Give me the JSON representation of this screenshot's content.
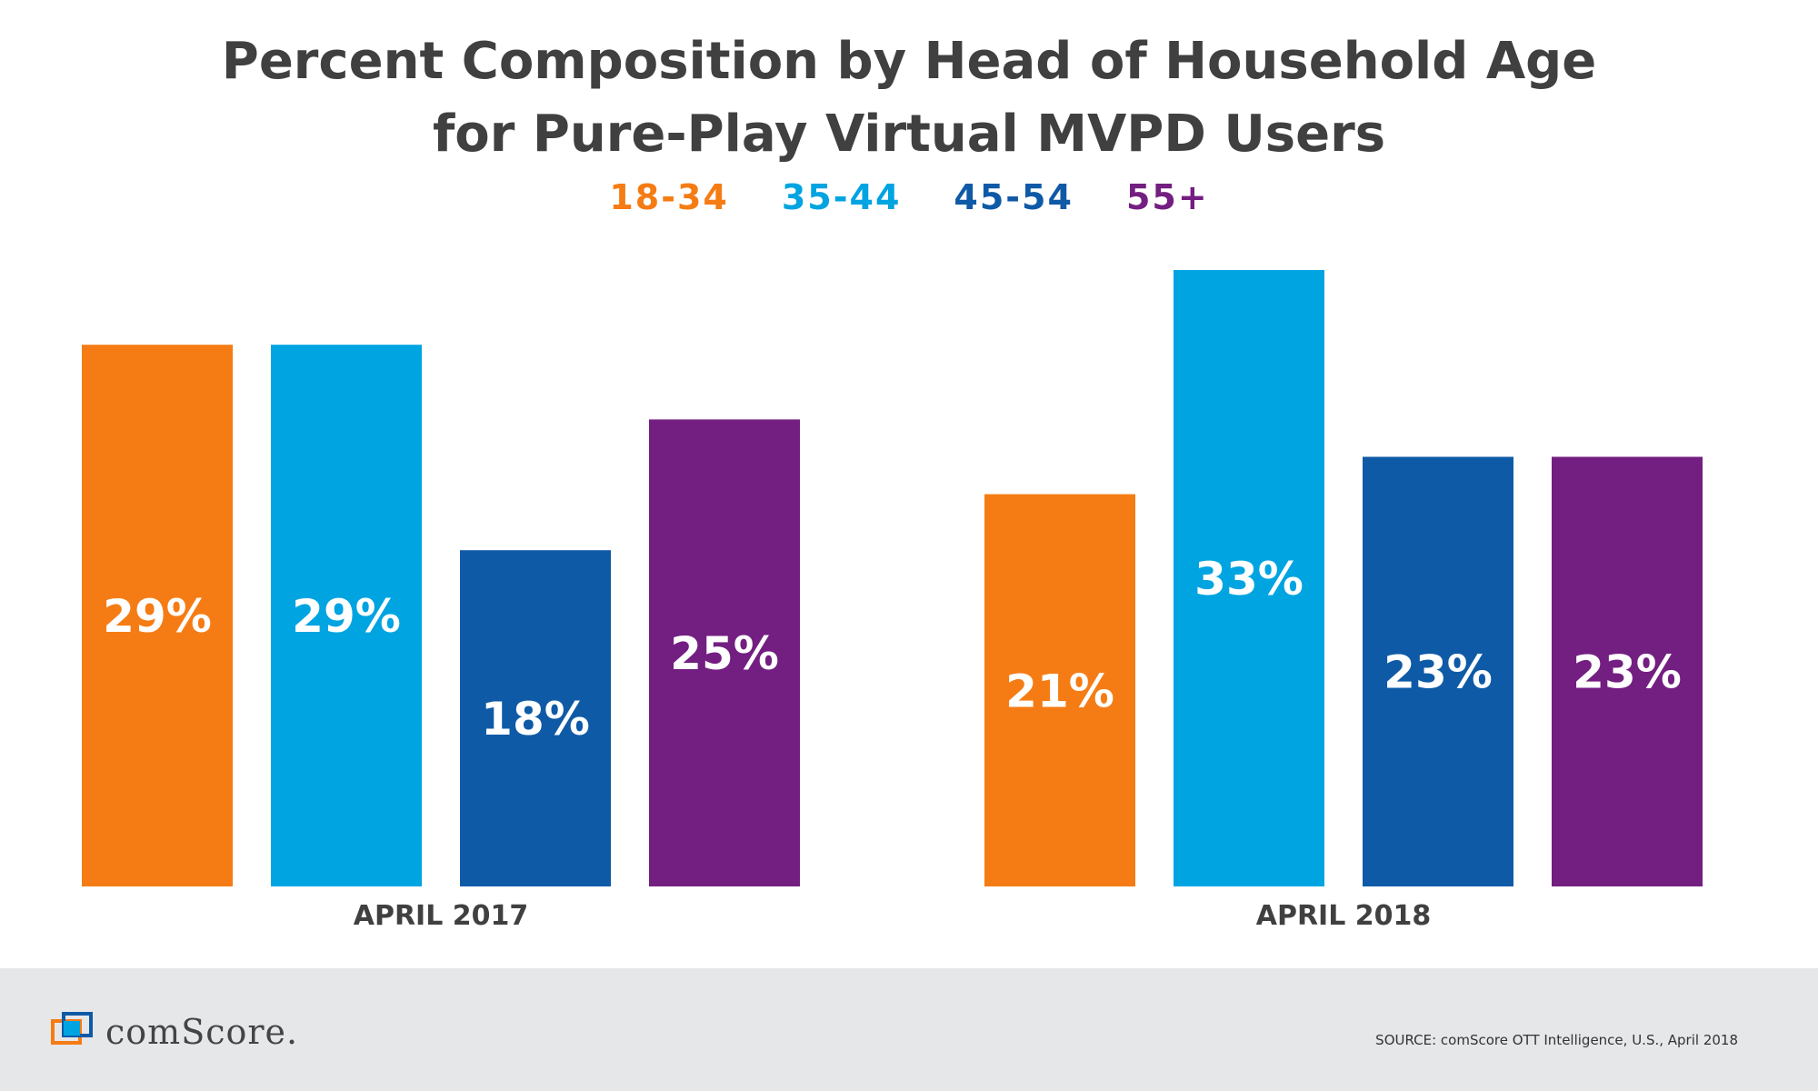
{
  "title_line1": "Percent Composition by Head of Household Age",
  "title_line2": "for Pure-Play Virtual MVPD Users",
  "legend": [
    {
      "label": "18-34",
      "color": "#f57c14"
    },
    {
      "label": "35-44",
      "color": "#00a4e1"
    },
    {
      "label": "45-54",
      "color": "#0f5aa6"
    },
    {
      "label": "55+",
      "color": "#731e81"
    }
  ],
  "chart_data": {
    "type": "bar",
    "title": "Percent Composition by Head of Household Age for Pure-Play Virtual MVPD Users",
    "categories": [
      "APRIL 2017",
      "APRIL 2018"
    ],
    "series": [
      {
        "name": "18-34",
        "color": "#f57c14",
        "values": [
          29,
          21
        ],
        "labels": [
          "29%",
          "21%"
        ]
      },
      {
        "name": "35-44",
        "color": "#00a4e1",
        "values": [
          29,
          33
        ],
        "labels": [
          "29%",
          "33%"
        ]
      },
      {
        "name": "45-54",
        "color": "#0f5aa6",
        "values": [
          18,
          23
        ],
        "labels": [
          "18%",
          "23%"
        ]
      },
      {
        "name": "55+",
        "color": "#731e81",
        "values": [
          25,
          23
        ],
        "labels": [
          "25%",
          "23%"
        ]
      }
    ],
    "ylim": [
      0,
      33
    ],
    "grid": false,
    "legend_position": "top-center"
  },
  "footer": {
    "logo_text": "comScore.",
    "source": "SOURCE: comScore OTT Intelligence, U.S., April 2018"
  }
}
